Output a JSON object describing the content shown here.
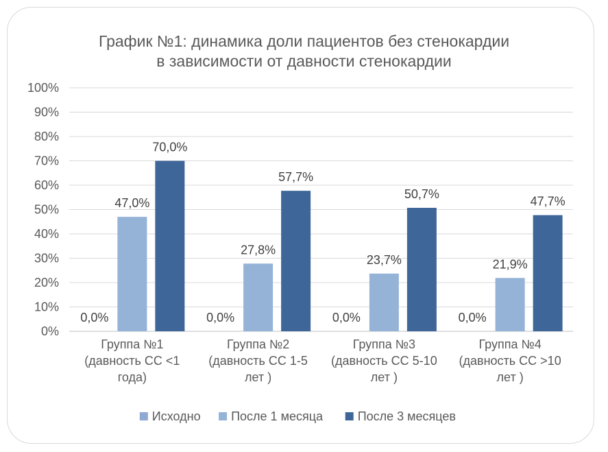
{
  "chart_data": {
    "type": "bar",
    "title_lines": [
      "График №1: динамика доли пациентов без стенокардии",
      "в зависимости от давности стенокардии"
    ],
    "categories": [
      [
        "Группа №1",
        "(давность СС <1",
        "года)"
      ],
      [
        "Группа №2",
        "(давность СС 1-5",
        "лет )"
      ],
      [
        "Группа №3",
        "(давность СС 5-10",
        "лет )"
      ],
      [
        "Группа №4",
        "(давность СС >10",
        "лет )"
      ]
    ],
    "series": [
      {
        "name": "Исходно",
        "values": [
          0,
          0,
          0,
          0
        ],
        "labels": [
          "0,0%",
          "0,0%",
          "0,0%",
          "0,0%"
        ],
        "color": "#8eaad3"
      },
      {
        "name": "После 1 месяца",
        "values": [
          47.0,
          27.8,
          23.7,
          21.9
        ],
        "labels": [
          "47,0%",
          "27,8%",
          "23,7%",
          "21,9%"
        ],
        "color": "#95b3d7"
      },
      {
        "name": "После 3 месяцев",
        "values": [
          70.0,
          57.7,
          50.7,
          47.7
        ],
        "labels": [
          "70,0%",
          "57,7%",
          "50,7%",
          "47,7%"
        ],
        "color": "#3e6699"
      }
    ],
    "y_ticks": [
      "0%",
      "10%",
      "20%",
      "30%",
      "40%",
      "50%",
      "60%",
      "70%",
      "80%",
      "90%",
      "100%"
    ],
    "ylim": [
      0,
      100
    ],
    "grid": true,
    "legend_position": "bottom"
  }
}
